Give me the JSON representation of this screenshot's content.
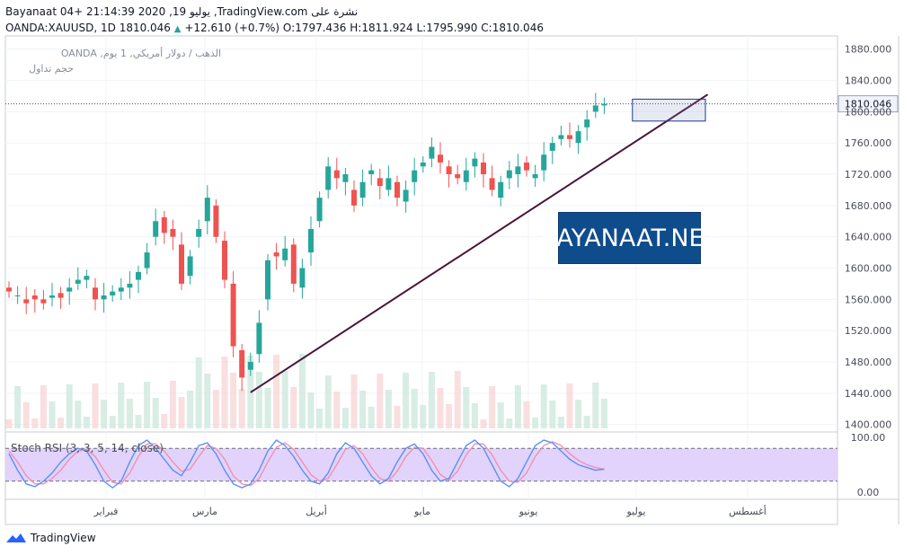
{
  "header": {
    "line1": "Bayanaat 04+ 21:14:39 2020 ,19 يوليو ,TradingView.com نشرة على",
    "symbol": "OANDA:XAUUSD, 1D",
    "last": "1810.046",
    "change": "+12.610 (+0.7%)",
    "open_label": "O:",
    "open": "1797.436",
    "high_label": "H:",
    "high": "1811.924",
    "low_label": "L:",
    "low": "1795.990",
    "close_label": "C:",
    "close": "1810.046"
  },
  "legend": {
    "series_title": "OANDA ,الذهب / دولار أمريكي, 1 يوم",
    "volume_title": "حجم تداول"
  },
  "watermark": "BAYANAAT.NET",
  "footer": {
    "brand": "TradingView"
  },
  "colors": {
    "up": "#26a69a",
    "down": "#ef5350",
    "trendline": "#4a1538",
    "stoch_band": "#e1d3fb",
    "k_line": "#5b8ff9",
    "d_line": "#f48fb1"
  },
  "chart_data": [
    {
      "type": "candlestick",
      "title": "OANDA ,الذهب / دولار أمريكي, 1 يوم",
      "y_axis": {
        "ticks": [
          1400,
          1440,
          1480,
          1520,
          1560,
          1600,
          1640,
          1680,
          1720,
          1760,
          1800,
          1840,
          1880
        ],
        "tick_labels": [
          "1400.000",
          "1440.000",
          "1480.000",
          "1520.000",
          "1560.000",
          "1600.000",
          "1640.000",
          "1680.000",
          "1720.000",
          "1760.000",
          "1800.000",
          "1840.000",
          "1880.000"
        ],
        "range": [
          1395,
          1890
        ]
      },
      "x_axis": {
        "labels": [
          "فبراير",
          "مارس",
          "أبريل",
          "مايو",
          "يونيو",
          "يوليو",
          "أغسطس"
        ]
      },
      "last_price": 1810.046,
      "last_price_label": "1810.046",
      "close_path": [
        [
          1575,
          1570
        ],
        [
          1565,
          1565
        ],
        [
          1560,
          1555
        ],
        [
          1565,
          1560
        ],
        [
          1560,
          1555
        ],
        [
          1562,
          1565
        ],
        [
          1568,
          1562
        ],
        [
          1570,
          1575
        ],
        [
          1580,
          1585
        ],
        [
          1585,
          1590
        ],
        [
          1575,
          1560
        ],
        [
          1560,
          1565
        ],
        [
          1565,
          1570
        ],
        [
          1570,
          1575
        ],
        [
          1575,
          1580
        ],
        [
          1585,
          1595
        ],
        [
          1600,
          1620
        ],
        [
          1640,
          1660
        ],
        [
          1665,
          1645
        ],
        [
          1650,
          1640
        ],
        [
          1630,
          1580
        ],
        [
          1590,
          1615
        ],
        [
          1640,
          1650
        ],
        [
          1660,
          1690
        ],
        [
          1680,
          1640
        ],
        [
          1635,
          1585
        ],
        [
          1580,
          1500
        ],
        [
          1495,
          1460
        ],
        [
          1470,
          1480
        ],
        [
          1490,
          1530
        ],
        [
          1560,
          1610
        ],
        [
          1620,
          1615
        ],
        [
          1610,
          1625
        ],
        [
          1630,
          1580
        ],
        [
          1575,
          1600
        ],
        [
          1620,
          1650
        ],
        [
          1660,
          1690
        ],
        [
          1700,
          1730
        ],
        [
          1725,
          1715
        ],
        [
          1710,
          1720
        ],
        [
          1700,
          1680
        ],
        [
          1690,
          1710
        ],
        [
          1720,
          1725
        ],
        [
          1715,
          1705
        ],
        [
          1700,
          1715
        ],
        [
          1710,
          1690
        ],
        [
          1685,
          1700
        ],
        [
          1710,
          1725
        ],
        [
          1730,
          1735
        ],
        [
          1740,
          1755
        ],
        [
          1745,
          1735
        ],
        [
          1730,
          1720
        ],
        [
          1720,
          1715
        ],
        [
          1710,
          1725
        ],
        [
          1730,
          1740
        ],
        [
          1735,
          1720
        ],
        [
          1715,
          1700
        ],
        [
          1690,
          1710
        ],
        [
          1715,
          1725
        ],
        [
          1720,
          1730
        ],
        [
          1735,
          1725
        ],
        [
          1715,
          1720
        ],
        [
          1725,
          1745
        ],
        [
          1750,
          1760
        ],
        [
          1765,
          1770
        ],
        [
          1770,
          1765
        ],
        [
          1760,
          1775
        ],
        [
          1780,
          1790
        ],
        [
          1800,
          1808
        ],
        [
          1808,
          1810
        ]
      ],
      "trendline": {
        "from": {
          "x_index": 28,
          "y": 1441
        },
        "to": {
          "x_index": 81,
          "y": 1822
        }
      },
      "highlight_box": {
        "from_index": 73,
        "to_index": 80,
        "y_range": [
          1788,
          1816
        ]
      }
    },
    {
      "type": "bar",
      "title": "حجم تداول",
      "note": "volume histogram under price series"
    },
    {
      "type": "line",
      "title": "Stoch RSI (3, 3, 5, 14, close)",
      "y_axis": {
        "ticks": [
          0,
          100
        ],
        "tick_labels": [
          "0.00",
          "100.00"
        ],
        "band": [
          20,
          80
        ]
      },
      "series": [
        {
          "name": "K",
          "values": [
            70,
            40,
            15,
            10,
            20,
            35,
            55,
            70,
            80,
            75,
            50,
            20,
            8,
            20,
            55,
            85,
            95,
            80,
            60,
            40,
            30,
            55,
            85,
            90,
            70,
            40,
            15,
            8,
            15,
            40,
            75,
            95,
            85,
            65,
            40,
            20,
            15,
            35,
            70,
            90,
            80,
            55,
            30,
            15,
            25,
            55,
            80,
            88,
            70,
            40,
            20,
            25,
            55,
            85,
            95,
            80,
            50,
            20,
            10,
            25,
            55,
            85,
            95,
            90,
            75,
            60,
            50,
            45,
            40,
            42
          ]
        },
        {
          "name": "D",
          "values": [
            75,
            55,
            30,
            15,
            15,
            25,
            40,
            60,
            75,
            78,
            65,
            40,
            18,
            15,
            35,
            65,
            88,
            88,
            75,
            55,
            38,
            42,
            65,
            85,
            80,
            60,
            30,
            15,
            12,
            25,
            55,
            82,
            90,
            78,
            55,
            32,
            20,
            25,
            50,
            78,
            85,
            70,
            45,
            25,
            20,
            38,
            65,
            82,
            80,
            58,
            32,
            22,
            38,
            68,
            88,
            88,
            68,
            40,
            20,
            18,
            35,
            65,
            85,
            92,
            85,
            70,
            58,
            50,
            45,
            42
          ]
        }
      ]
    }
  ]
}
